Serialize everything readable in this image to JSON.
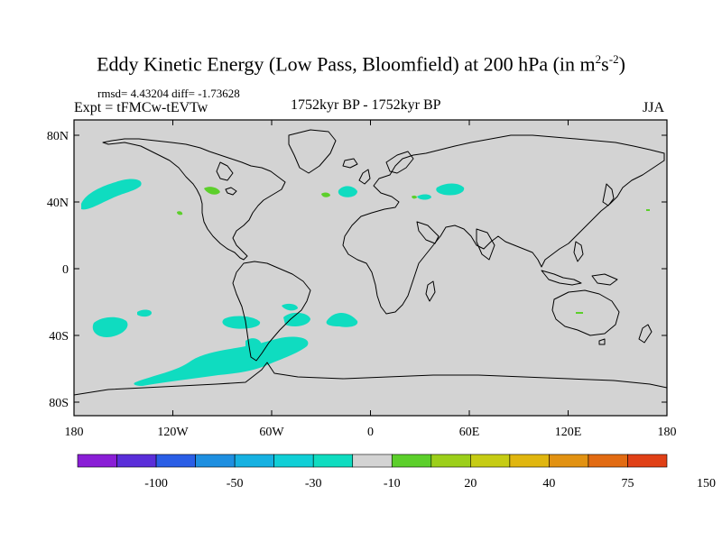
{
  "header": {
    "title_main": "Eddy Kinetic Energy (Low Pass, Bloomfield) at 200 hPa (in m",
    "title_sup1": "2",
    "title_mid": "s",
    "title_sup2": "-2",
    "title_end": ")",
    "stats": "rmsd= 4.43204 diff= -1.73628",
    "expt": "Expt = tFMCw-tEVTw",
    "period": "1752kyr BP - 1752kyr BP",
    "season": "JJA"
  },
  "map": {
    "land_background": "#d3d3d3",
    "coastline_color": "#000000",
    "lon_ticks": [
      "180",
      "120W",
      "60W",
      "0",
      "60E",
      "120E",
      "180"
    ],
    "lat_ticks": [
      "80N",
      "40N",
      "0",
      "40S",
      "80S"
    ]
  },
  "colorbar": {
    "colors": [
      "#8a1ed6",
      "#5a2ed9",
      "#2a5ee6",
      "#1e8fe0",
      "#16b1e1",
      "#10cfd6",
      "#0fdcc0",
      "#d3d3d3",
      "#5ccf2b",
      "#9ccf1a",
      "#c6cc14",
      "#e0b60f",
      "#e29212",
      "#e26b12",
      "#e04016"
    ],
    "labels": [
      "-100",
      "-50",
      "-30",
      "-10",
      "20",
      "40",
      "75",
      "150"
    ]
  },
  "anomaly_colors": {
    "negative": "#0fdcc0",
    "positive": "#5ccf2b"
  }
}
